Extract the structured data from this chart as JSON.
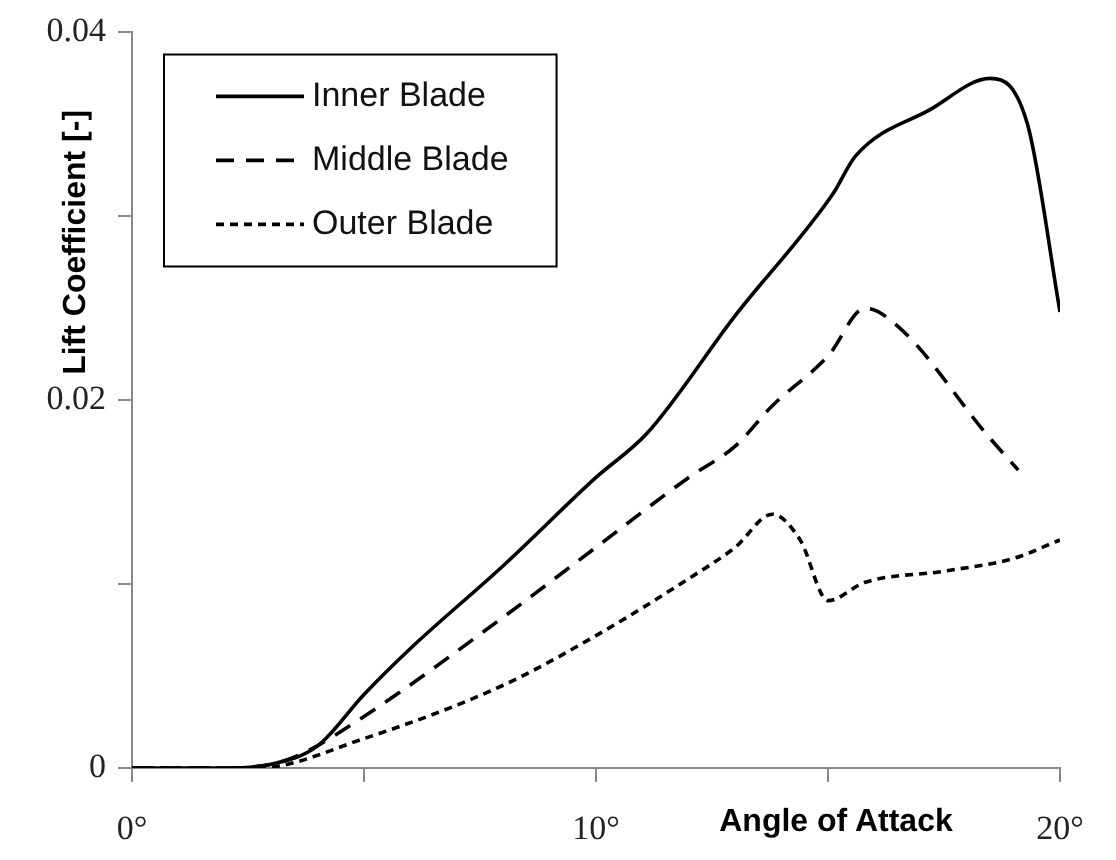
{
  "chart_data": {
    "type": "line",
    "xlabel": "Angle of Attack",
    "ylabel": "Lift Coefficient [-]",
    "xlim": [
      0,
      20
    ],
    "xticks": [
      {
        "value": 0,
        "label": "0°"
      },
      {
        "value": 5,
        "label": null
      },
      {
        "value": 10,
        "label": "10°"
      },
      {
        "value": 15,
        "label": null
      },
      {
        "value": 20,
        "label": "20°"
      }
    ],
    "ylim": [
      0,
      0.04
    ],
    "yticks": [
      0,
      {
        "value": 0.01,
        "label": null
      },
      0.02,
      {
        "value": 0.03,
        "label": null
      },
      0.04
    ],
    "legend": "top left",
    "marker": "none",
    "grid": false,
    "series": [
      {
        "name": "Inner Blade",
        "color": "#000000",
        "line_style": "solid",
        "x": [
          0,
          2,
          3,
          4,
          5,
          6,
          8,
          10,
          11.1,
          13,
          15.1,
          15.6,
          17.2,
          18.5,
          19.3,
          20
        ],
        "values": [
          0,
          0,
          0.0002,
          0.0012,
          0.004,
          0.0065,
          0.011,
          0.0158,
          0.0182,
          0.0246,
          0.0312,
          0.0333,
          0.0358,
          0.0375,
          0.035,
          0.0248
        ]
      },
      {
        "name": "Middle Blade",
        "color": "#000000",
        "line_style": "dashed",
        "x": [
          0,
          2,
          3,
          3.6,
          5,
          8,
          10,
          12,
          13,
          13.8,
          15,
          15.8,
          16.6,
          18.4,
          19.1
        ],
        "values": [
          0,
          0,
          0.0002,
          0.0007,
          0.0028,
          0.0082,
          0.012,
          0.0158,
          0.0175,
          0.0197,
          0.0224,
          0.025,
          0.0238,
          0.0182,
          0.0162
        ]
      },
      {
        "name": "Outer Blade",
        "color": "#000000",
        "line_style": "dotted",
        "x": [
          0,
          2.7,
          5,
          8,
          10,
          12,
          13,
          13.8,
          14.4,
          15,
          15.8,
          17.5,
          19,
          20
        ],
        "values": [
          0,
          0,
          0.0016,
          0.0045,
          0.0072,
          0.0103,
          0.012,
          0.0138,
          0.0124,
          0.0091,
          0.0101,
          0.0107,
          0.0114,
          0.0124
        ]
      }
    ]
  }
}
